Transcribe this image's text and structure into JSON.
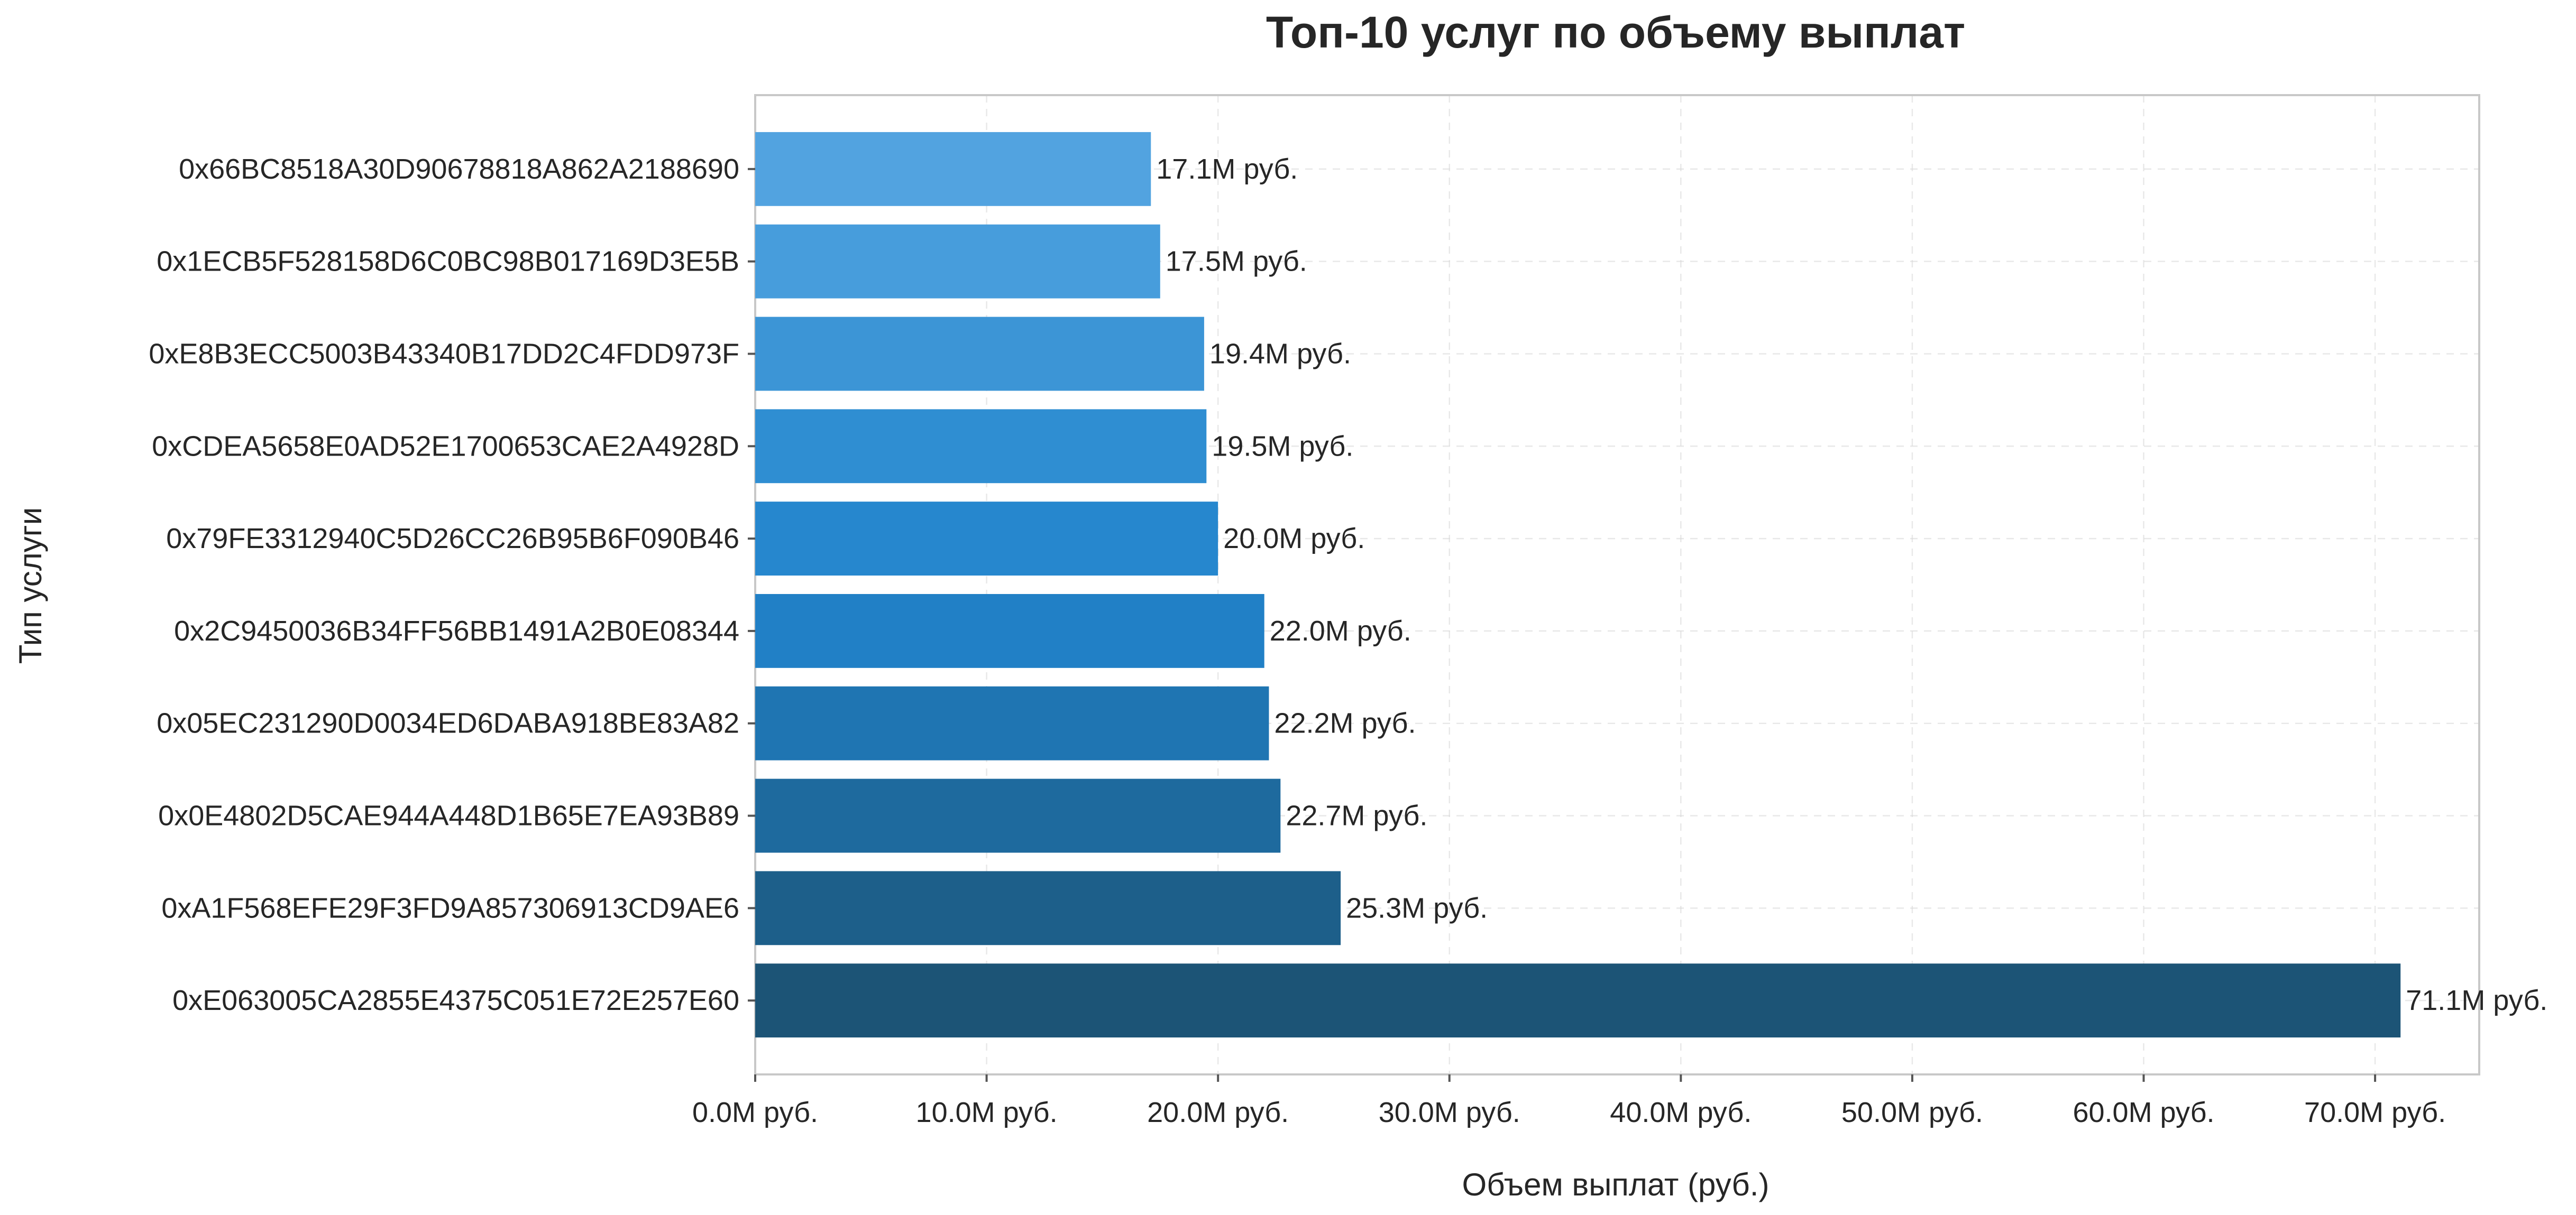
{
  "chart_data": {
    "type": "bar",
    "orientation": "horizontal",
    "title": "Топ-10 услуг по объему выплат",
    "xlabel": "Объем выплат (руб.)",
    "ylabel": "Тип услуги",
    "categories": [
      "0x66BC8518A30D90678818A862A2188690",
      "0x1ECB5F528158D6C0BC98B017169D3E5B",
      "0xE8B3ECC5003B43340B17DD2C4FDD973F",
      "0xCDEA5658E0AD52E1700653CAE2A4928D",
      "0x79FE3312940C5D26CC26B95B6F090B46",
      "0x2C9450036B34FF56BB1491A2B0E08344",
      "0x05EC231290D0034ED6DABA918BE83A82",
      "0x0E4802D5CAE944A448D1B65E7EA93B89",
      "0xA1F568EFE29F3FD9A857306913CD9AE6",
      "0xE063005CA2855E4375C051E72E257E60"
    ],
    "values": [
      17.1,
      17.5,
      19.4,
      19.5,
      20.0,
      22.0,
      22.2,
      22.7,
      25.3,
      71.1
    ],
    "value_labels": [
      "17.1M руб.",
      "17.5M руб.",
      "19.4M руб.",
      "19.5M руб.",
      "20.0M руб.",
      "22.0M руб.",
      "22.2M руб.",
      "22.7M руб.",
      "25.3M руб.",
      "71.1M руб."
    ],
    "xlim": [
      0,
      74.5
    ],
    "xticks": [
      0,
      10,
      20,
      30,
      40,
      50,
      60,
      70
    ],
    "xtick_labels": [
      "0.0M руб.",
      "10.0M руб.",
      "20.0M руб.",
      "30.0M руб.",
      "40.0M руб.",
      "50.0M руб.",
      "60.0M руб.",
      "70.0M руб."
    ],
    "bar_colors": [
      "#52a3e0",
      "#479ddc",
      "#3c95d6",
      "#2f8ed2",
      "#2687ce",
      "#2180c6",
      "#1f75b2",
      "#1e6a9e",
      "#1d5f8a",
      "#1c5476"
    ],
    "grid": true,
    "legend": false
  }
}
